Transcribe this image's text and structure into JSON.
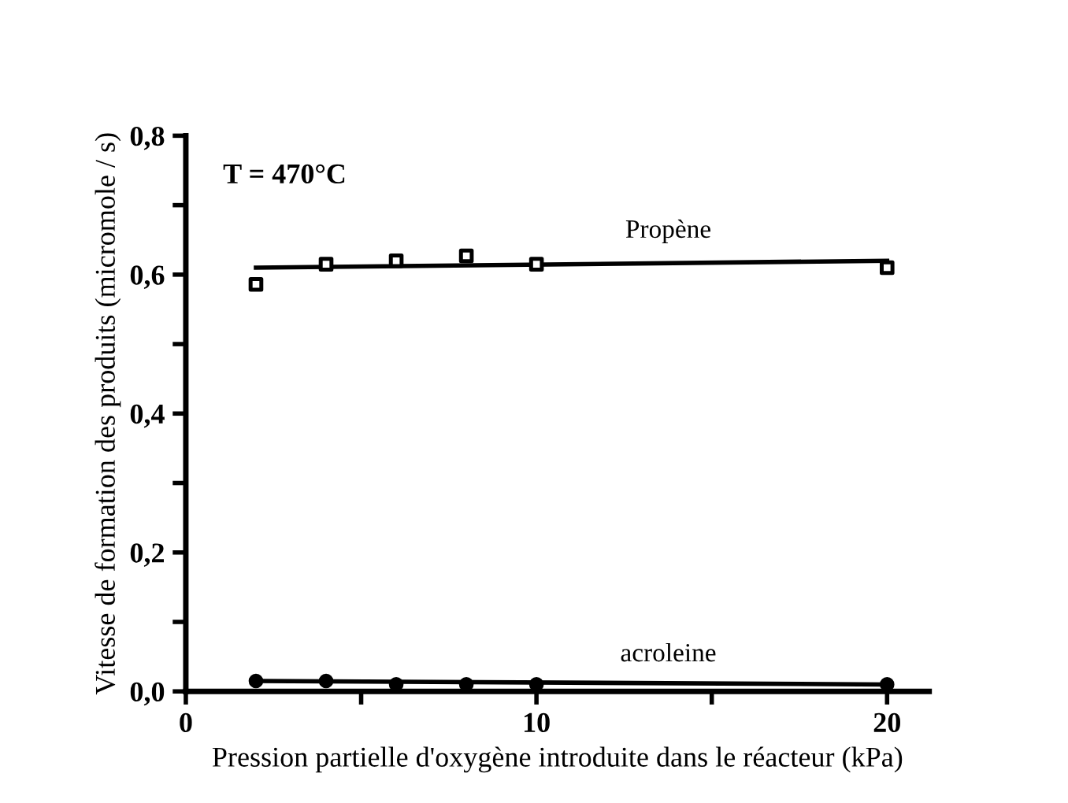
{
  "chart_data": {
    "type": "scatter",
    "xlabel": "Pression partielle d'oxygène introduite dans le réacteur (kPa)",
    "ylabel": "Vitesse de formation des produits (micromole / s)",
    "annotations": [
      "T = 470°C"
    ],
    "series": [
      {
        "marker": "square",
        "color": "#000000",
        "x": [
          2,
          4,
          6,
          8,
          10,
          20
        ],
        "values": [
          0.586,
          0.615,
          0.62,
          0.627,
          0.615,
          0.61
        ]
      },
      {
        "type": "line",
        "name": "Propène",
        "color": "#000000",
        "x": [
          2,
          20
        ],
        "values": [
          0.61,
          0.62
        ]
      },
      {
        "marker": "circle",
        "color": "#000000",
        "x": [
          2,
          4,
          6,
          8,
          10,
          20
        ],
        "values": [
          0.015,
          0.015,
          0.01,
          0.01,
          0.01,
          0.01
        ]
      },
      {
        "type": "line",
        "name": "acroleine",
        "color": "#000000",
        "x": [
          2,
          20
        ],
        "values": [
          0.015,
          0.01
        ]
      }
    ],
    "xlim": [
      0,
      21.2
    ],
    "ylim": [
      0,
      0.8
    ],
    "xticks": [
      0,
      {
        "value": 5,
        "label": null
      },
      10,
      {
        "value": 15,
        "label": null
      },
      20
    ],
    "yticks": [
      {
        "value": 0,
        "label": "0,0"
      },
      {
        "value": 0.1,
        "label": null
      },
      {
        "value": 0.2,
        "label": "0,2"
      },
      {
        "value": 0.3,
        "label": null
      },
      {
        "value": 0.4,
        "label": "0,4"
      },
      {
        "value": 0.5,
        "label": null
      },
      {
        "value": 0.6,
        "label": "0,6"
      },
      {
        "value": 0.7,
        "label": null
      },
      {
        "value": 0.8,
        "label": "0,8"
      }
    ],
    "grid": false,
    "legend": false
  }
}
